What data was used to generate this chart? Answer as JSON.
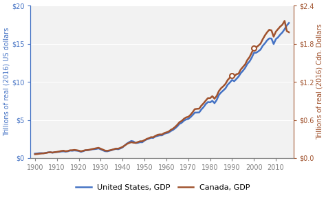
{
  "title": "",
  "ylabel_left": "Trillions of real (2016) US dollars",
  "ylabel_right": "Trillions of real (2016) Cdn. Dollars",
  "us_color": "#4472C4",
  "canada_color": "#A0522D",
  "us_label": "United States, GDP",
  "canada_label": "Canada, GDP",
  "ylim_left": [
    0,
    20
  ],
  "ylim_right": [
    0,
    2.4
  ],
  "yticks_left": [
    0,
    5,
    10,
    15,
    20
  ],
  "yticks_right": [
    0.0,
    0.6,
    1.2,
    1.8,
    2.4
  ],
  "ytick_labels_left": [
    "$0",
    "$5",
    "$10",
    "$15",
    "$20"
  ],
  "ytick_labels_right": [
    "$0.0",
    "$0.6",
    "$1.2",
    "$1.8",
    "$2.4"
  ],
  "xticks": [
    1900,
    1910,
    1920,
    1930,
    1940,
    1950,
    1960,
    1970,
    1980,
    1990,
    2000,
    2010
  ],
  "background_color": "#f2f2f2",
  "us_gdp_years": [
    1900,
    1901,
    1902,
    1903,
    1904,
    1905,
    1906,
    1907,
    1908,
    1909,
    1910,
    1911,
    1912,
    1913,
    1914,
    1915,
    1916,
    1917,
    1918,
    1919,
    1920,
    1921,
    1922,
    1923,
    1924,
    1925,
    1926,
    1927,
    1928,
    1929,
    1930,
    1931,
    1932,
    1933,
    1934,
    1935,
    1936,
    1937,
    1938,
    1939,
    1940,
    1941,
    1942,
    1943,
    1944,
    1945,
    1946,
    1947,
    1948,
    1949,
    1950,
    1951,
    1952,
    1953,
    1954,
    1955,
    1956,
    1957,
    1958,
    1959,
    1960,
    1961,
    1962,
    1963,
    1964,
    1965,
    1966,
    1967,
    1968,
    1969,
    1970,
    1971,
    1972,
    1973,
    1974,
    1975,
    1976,
    1977,
    1978,
    1979,
    1980,
    1981,
    1982,
    1983,
    1984,
    1985,
    1986,
    1987,
    1988,
    1989,
    1990,
    1991,
    1992,
    1993,
    1994,
    1995,
    1996,
    1997,
    1998,
    1999,
    2000,
    2001,
    2002,
    2003,
    2004,
    2005,
    2006,
    2007,
    2008,
    2009,
    2010,
    2011,
    2012,
    2013,
    2014,
    2015,
    2016
  ],
  "us_gdp_values": [
    0.58,
    0.6,
    0.64,
    0.65,
    0.63,
    0.68,
    0.74,
    0.76,
    0.7,
    0.76,
    0.79,
    0.81,
    0.86,
    0.88,
    0.84,
    0.88,
    0.98,
    0.96,
    1.0,
    0.97,
    0.93,
    0.82,
    0.9,
    1.01,
    1.03,
    1.07,
    1.14,
    1.17,
    1.2,
    1.27,
    1.15,
    1.02,
    0.9,
    0.88,
    0.96,
    1.03,
    1.14,
    1.2,
    1.16,
    1.26,
    1.4,
    1.66,
    1.9,
    2.08,
    2.24,
    2.17,
    1.97,
    2.0,
    2.08,
    2.07,
    2.29,
    2.45,
    2.54,
    2.66,
    2.64,
    2.83,
    2.91,
    2.98,
    2.98,
    3.18,
    3.26,
    3.34,
    3.54,
    3.69,
    3.9,
    4.16,
    4.49,
    4.63,
    4.9,
    5.06,
    5.13,
    5.36,
    5.65,
    5.96,
    5.97,
    5.99,
    6.38,
    6.69,
    7.09,
    7.35,
    7.31,
    7.51,
    7.2,
    7.63,
    8.28,
    8.61,
    8.87,
    9.14,
    9.62,
    9.91,
    10.25,
    10.08,
    10.38,
    10.7,
    11.15,
    11.46,
    11.84,
    12.36,
    12.68,
    13.18,
    13.8,
    13.82,
    14.0,
    14.23,
    14.72,
    15.05,
    15.44,
    15.7,
    15.68,
    14.96,
    15.6,
    15.84,
    16.2,
    16.49,
    16.91,
    17.39,
    17.73
  ],
  "canada_gdp_years": [
    1900,
    1901,
    1902,
    1903,
    1904,
    1905,
    1906,
    1907,
    1908,
    1909,
    1910,
    1911,
    1912,
    1913,
    1914,
    1915,
    1916,
    1917,
    1918,
    1919,
    1920,
    1921,
    1922,
    1923,
    1924,
    1925,
    1926,
    1927,
    1928,
    1929,
    1930,
    1931,
    1932,
    1933,
    1934,
    1935,
    1936,
    1937,
    1938,
    1939,
    1940,
    1941,
    1942,
    1943,
    1944,
    1945,
    1946,
    1947,
    1948,
    1949,
    1950,
    1951,
    1952,
    1953,
    1954,
    1955,
    1956,
    1957,
    1958,
    1959,
    1960,
    1961,
    1962,
    1963,
    1964,
    1965,
    1966,
    1967,
    1968,
    1969,
    1970,
    1971,
    1972,
    1973,
    1974,
    1975,
    1976,
    1977,
    1978,
    1979,
    1980,
    1981,
    1982,
    1983,
    1984,
    1985,
    1986,
    1987,
    1988,
    1989,
    1990,
    1991,
    1992,
    1993,
    1994,
    1995,
    1996,
    1997,
    1998,
    1999,
    2000,
    2001,
    2002,
    2003,
    2004,
    2005,
    2006,
    2007,
    2008,
    2009,
    2010,
    2011,
    2012,
    2013,
    2014,
    2015,
    2016
  ],
  "canada_gdp_values": [
    0.06,
    0.063,
    0.068,
    0.072,
    0.075,
    0.08,
    0.088,
    0.092,
    0.087,
    0.093,
    0.097,
    0.103,
    0.112,
    0.116,
    0.108,
    0.112,
    0.122,
    0.124,
    0.128,
    0.124,
    0.117,
    0.107,
    0.115,
    0.124,
    0.126,
    0.132,
    0.141,
    0.147,
    0.155,
    0.162,
    0.148,
    0.133,
    0.118,
    0.114,
    0.121,
    0.129,
    0.139,
    0.149,
    0.148,
    0.161,
    0.176,
    0.198,
    0.222,
    0.238,
    0.249,
    0.242,
    0.24,
    0.252,
    0.264,
    0.265,
    0.282,
    0.3,
    0.314,
    0.329,
    0.327,
    0.35,
    0.365,
    0.372,
    0.371,
    0.393,
    0.404,
    0.416,
    0.443,
    0.462,
    0.49,
    0.524,
    0.565,
    0.584,
    0.617,
    0.64,
    0.648,
    0.68,
    0.722,
    0.77,
    0.775,
    0.778,
    0.826,
    0.862,
    0.905,
    0.944,
    0.943,
    0.975,
    0.934,
    0.979,
    1.055,
    1.1,
    1.13,
    1.168,
    1.228,
    1.266,
    1.303,
    1.285,
    1.32,
    1.33,
    1.395,
    1.435,
    1.475,
    1.545,
    1.59,
    1.66,
    1.73,
    1.74,
    1.77,
    1.8,
    1.87,
    1.93,
    1.98,
    2.02,
    2.01,
    1.91,
    1.99,
    2.03,
    2.07,
    2.1,
    2.16,
    2.0,
    1.98
  ],
  "marker_years_canada": [
    1990,
    2000
  ],
  "marker_values_canada": [
    1.303,
    1.73
  ],
  "linewidth": 1.8,
  "tick_fontsize": 7,
  "label_fontsize": 7,
  "legend_fontsize": 8
}
